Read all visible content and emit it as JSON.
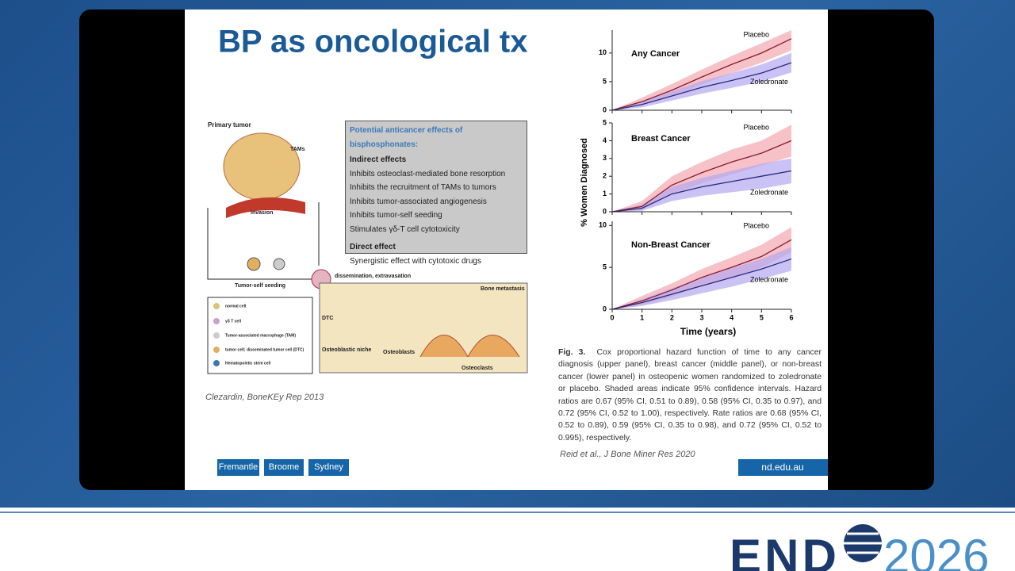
{
  "slide": {
    "title": "BP as oncological tx",
    "diagram": {
      "primary_tumor": "Primary tumor",
      "tams": "TAMs",
      "invasion": "invasion",
      "self_seeding": "Tumor-self seeding",
      "dissemination": "dissemination, extravasation",
      "bone_metastasis": "Bone metastasis",
      "dtc": "DTC",
      "osteoblastic_niche": "Osteoblastic niche",
      "osteoblasts": "Osteoblasts",
      "osteoclasts": "Osteoclasts",
      "legend": [
        "normal cell",
        "γδ T cell",
        "Tumor-associated macrophage (TAM)",
        "tumor cell; disseminated tumor  cell (DTC)",
        "Hematopoietic stem cell"
      ]
    },
    "effects_box": {
      "heading": "Potential anticancer effects of bisphosphonates:",
      "indirect_heading": "Indirect effects",
      "indirect": [
        "Inhibits osteoclast-mediated bone resorption",
        "Inhibits the recruitment of TAMs to tumors",
        "Inhibits tumor-associated angiogenesis",
        "Inhibits tumor-self seeding",
        "Stimulates γδ-T cell cytotoxicity"
      ],
      "direct_heading": "Direct effect",
      "direct": [
        "Synergistic effect with cytotoxic drugs"
      ]
    },
    "citation_left": "Clezardin, BoneKEy Rep 2013",
    "chart": {
      "type": "line",
      "y_label": "% Women Diagnosed",
      "x_label": "Time (years)",
      "xlim": [
        0,
        6
      ],
      "xticks": [
        0,
        1,
        2,
        3,
        4,
        5,
        6
      ],
      "panels": [
        {
          "title": "Any Cancer",
          "ylim": [
            0,
            14
          ],
          "yticks": [
            0,
            5,
            10
          ],
          "series": [
            {
              "name": "Placebo",
              "color": "#8b1a2a",
              "band_color": "#f4a7b0",
              "x": [
                0,
                1,
                2,
                3,
                4,
                5,
                6
              ],
              "values": [
                0,
                1.5,
                3.5,
                5.8,
                8,
                10,
                12.5
              ],
              "lower": [
                0,
                0.9,
                2.5,
                4.5,
                6.5,
                8.3,
                10.5
              ],
              "upper": [
                0,
                2.2,
                4.6,
                7.1,
                9.5,
                11.7,
                14
              ]
            },
            {
              "name": "Zoledronate",
              "color": "#2a2a7a",
              "band_color": "#b3a8f0",
              "x": [
                0,
                1,
                2,
                3,
                4,
                5,
                6
              ],
              "values": [
                0,
                1,
                2.5,
                4,
                5.2,
                6.5,
                8.3
              ],
              "lower": [
                0,
                0.5,
                1.7,
                2.9,
                3.9,
                5,
                6.6
              ],
              "upper": [
                0,
                1.5,
                3.3,
                5.1,
                6.5,
                8,
                10
              ]
            }
          ]
        },
        {
          "title": "Breast Cancer",
          "ylim": [
            0,
            5
          ],
          "yticks": [
            0,
            1,
            2,
            3,
            4,
            5
          ],
          "series": [
            {
              "name": "Placebo",
              "color": "#8b1a2a",
              "band_color": "#f4a7b0",
              "x": [
                0,
                1,
                2,
                3,
                4,
                5,
                6
              ],
              "values": [
                0,
                0.3,
                1.5,
                2.2,
                2.8,
                3.3,
                4
              ],
              "lower": [
                0,
                0.1,
                1,
                1.6,
                2.1,
                2.6,
                3.1
              ],
              "upper": [
                0,
                0.6,
                2,
                2.8,
                3.5,
                4,
                4.9
              ]
            },
            {
              "name": "Zoledronate",
              "color": "#2a2a7a",
              "band_color": "#b3a8f0",
              "x": [
                0,
                1,
                2,
                3,
                4,
                5,
                6
              ],
              "values": [
                0,
                0.2,
                1,
                1.4,
                1.7,
                2,
                2.3
              ],
              "lower": [
                0,
                0.05,
                0.6,
                0.9,
                1.1,
                1.3,
                1.6
              ],
              "upper": [
                0,
                0.4,
                1.4,
                1.9,
                2.3,
                2.7,
                3
              ]
            }
          ]
        },
        {
          "title": "Non-Breast Cancer",
          "ylim": [
            0,
            10.5
          ],
          "yticks": [
            0,
            5,
            10
          ],
          "series": [
            {
              "name": "Placebo",
              "color": "#8b1a2a",
              "band_color": "#f4a7b0",
              "x": [
                0,
                1,
                2,
                3,
                4,
                5,
                6
              ],
              "values": [
                0,
                1,
                2.3,
                3.8,
                5,
                6.3,
                8.3
              ],
              "lower": [
                0,
                0.5,
                1.5,
                2.8,
                3.8,
                5,
                6.8
              ],
              "upper": [
                0,
                1.6,
                3.1,
                4.8,
                6.2,
                7.7,
                9.8
              ]
            },
            {
              "name": "Zoledronate",
              "color": "#2a2a7a",
              "band_color": "#b3a8f0",
              "x": [
                0,
                1,
                2,
                3,
                4,
                5,
                6
              ],
              "values": [
                0,
                0.8,
                1.8,
                2.8,
                3.8,
                4.8,
                6
              ],
              "lower": [
                0,
                0.4,
                1.1,
                1.9,
                2.7,
                3.6,
                4.6
              ],
              "upper": [
                0,
                1.2,
                2.5,
                3.7,
                4.9,
                6,
                7.4
              ]
            }
          ]
        }
      ]
    },
    "caption": {
      "label": "Fig. 3.",
      "text": "Cox proportional hazard function of time to any cancer diagnosis (upper panel), breast cancer (middle panel), or non-breast cancer (lower panel) in osteopenic women randomized to zoledronate or placebo. Shaded areas indicate 95% confidence intervals. Hazard ratios are 0.67 (95% CI, 0.51 to 0.89), 0.58 (95% CI, 0.35 to 0.97), and 0.72 (95% CI, 0.52 to 1.00), respectively. Rate ratios are 0.68 (95% CI, 0.52 to 0.89), 0.59 (95% CI, 0.35 to 0.98), and 0.72 (95% CI, 0.52 to 0.995), respectively."
    },
    "citation_right": "Reid et al., J Bone Miner Res 2020",
    "footer_buttons": [
      "Fremantle",
      "Broome",
      "Sydney"
    ],
    "url": "nd.edu.au"
  },
  "branding": {
    "logo_left": "END",
    "logo_right": "2026"
  }
}
